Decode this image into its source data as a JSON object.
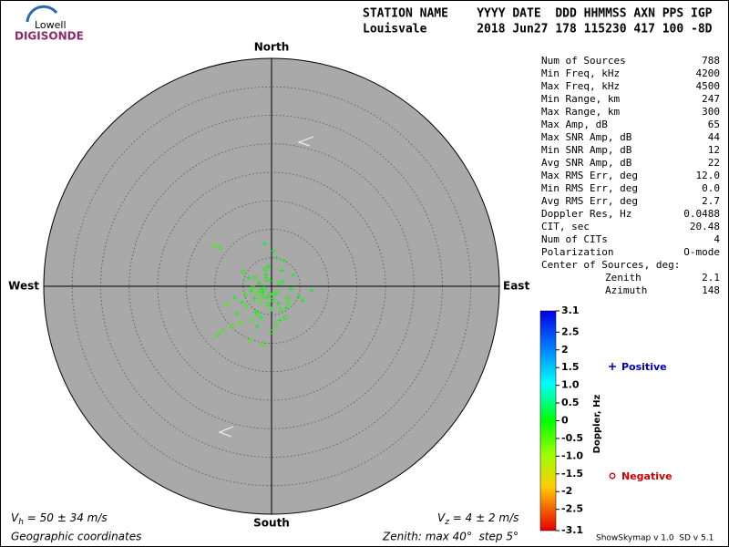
{
  "logo": {
    "top": "Lowell",
    "bottom": "DIGISONDE"
  },
  "header": {
    "line1": "STATION NAME    YYYY DATE  DDD HHMMSS AXN PPS IGP",
    "line2": "Louisvale       2018 Jun27 178 115230 417 100 -8D"
  },
  "stats": {
    "rows": [
      [
        "Num of Sources",
        "788"
      ],
      [
        "Min Freq, kHz",
        "4200"
      ],
      [
        "Max Freq, kHz",
        "4500"
      ],
      [
        "Min Range, km",
        "247"
      ],
      [
        "Max Range, km",
        "300"
      ],
      [
        "Max Amp, dB",
        "65"
      ],
      [
        "Max SNR Amp, dB",
        "44"
      ],
      [
        "Min SNR Amp, dB",
        "12"
      ],
      [
        "Avg SNR Amp, dB",
        "22"
      ],
      [
        "Max RMS Err, deg",
        "12.0"
      ],
      [
        "Min RMS Err, deg",
        "0.0"
      ],
      [
        "Avg RMS Err, deg",
        "2.7"
      ],
      [
        "Doppler Res, Hz",
        "0.0488"
      ],
      [
        "CIT, sec",
        "20.48"
      ],
      [
        "Num of CITs",
        "4"
      ],
      [
        "Polarization",
        "O-mode"
      ]
    ],
    "center_title": "Center of Sources, deg:",
    "center_rows": [
      [
        "Zenith",
        "2.1"
      ],
      [
        "Azimuth",
        "148"
      ]
    ]
  },
  "footer": {
    "vh": [
      "V",
      "h",
      " = 50 ± 34 m/s"
    ],
    "vz": [
      "V",
      "z",
      " = 4 ± 2 m/s"
    ],
    "coords": "Geographic coordinates",
    "zenith": "Zenith: max 40°  step 5°",
    "version": "ShowSkymap v 1.0  SD v 5.1"
  },
  "chart_data": {
    "type": "skymap",
    "directions": {
      "north": "North",
      "south": "South",
      "east": "East",
      "west": "West"
    },
    "rlim": [
      0,
      40
    ],
    "rticks": [
      5,
      10,
      15,
      20,
      25,
      30,
      35,
      40
    ],
    "colorbar": {
      "label": "Doppler, Hz",
      "clim": [
        -3.1,
        3.1
      ],
      "ticks": [
        3.1,
        2.5,
        2,
        1.5,
        {
          "value": 1,
          "label": "1.0"
        },
        0.5,
        0,
        -0.5,
        {
          "value": -1,
          "label": "-1.0"
        },
        -1.5,
        -2,
        -2.5,
        -3.1
      ]
    },
    "series": [
      {
        "name": "Positive",
        "marker": "plus",
        "color": "#0000c0",
        "x": [
          -1.5,
          -0.8,
          -2.2,
          0.5,
          1.2,
          -3.0,
          2.0,
          -1.0,
          0.0,
          -2.8,
          3.5,
          4.8,
          -4.0,
          1.8,
          -0.5,
          2.6,
          -1.8,
          0.9,
          -3.6,
          5.5,
          7.0,
          -5.2,
          -6.5,
          0.3,
          -1.2,
          2.2,
          -2.5,
          3.8,
          -0.2,
          1.5
        ],
        "values": [
          -1.0,
          -2.0,
          0.5,
          -1.5,
          -3.0,
          -2.2,
          0.8,
          2.0,
          -4.0,
          -4.5,
          -0.5,
          -1.8,
          1.5,
          2.8,
          3.5,
          -3.8,
          -5.5,
          5.0,
          -0.8,
          -2.5,
          -0.8,
          -2.8,
          -2.0,
          6.2,
          7.5,
          4.5,
          -7.0,
          2.0,
          1.0,
          -6.0
        ],
        "doppler": [
          0.1,
          0.2,
          0.1,
          0.3,
          0.1,
          0.2,
          0.2,
          0.1,
          0.1,
          0.3,
          0.2,
          0.2,
          0.1,
          0.1,
          0.1,
          0.2,
          0.3,
          0.2,
          0.1,
          0.2,
          0.2,
          0.2,
          0.1,
          0.3,
          0.2,
          0.1,
          0.2,
          0.1,
          0.1,
          0.2
        ]
      },
      {
        "name": "Negative",
        "marker": "circle",
        "color": "#d00000",
        "x": [
          -1.7,
          -1.3,
          -2.6,
          -0.6,
          0.2,
          -3.3,
          1.0,
          -2.0,
          -4.5,
          -0.9,
          1.6,
          -2.4,
          -5.5,
          -7.0,
          -8.5,
          -9.5,
          -6.0,
          -3.8,
          -1.5,
          0.8,
          2.4,
          3.0,
          -4.6,
          -10.0,
          -9.0,
          -0.3,
          -2.9,
          -1.1,
          1.3,
          -3.5,
          -7.8,
          -5.0,
          0.0,
          -1.9,
          2.8
        ],
        "values": [
          -1.8,
          -0.4,
          -1.2,
          -3.2,
          -2.4,
          -0.2,
          -1.0,
          -2.8,
          -3.5,
          1.2,
          -4.2,
          -5.0,
          -6.5,
          -7.0,
          -7.8,
          -8.5,
          -4.8,
          -9.5,
          -10.2,
          -6.8,
          -5.5,
          -3.0,
          -1.5,
          7.2,
          6.8,
          -1.4,
          1.5,
          3.0,
          0.5,
          -6.0,
          -3.2,
          2.5,
          -8.0,
          -0.8,
          -2.0
        ],
        "doppler": [
          -0.2,
          -0.1,
          -0.3,
          -0.2,
          -0.1,
          -0.3,
          -0.2,
          -0.4,
          -0.3,
          -0.1,
          -0.2,
          -0.3,
          -0.4,
          -0.3,
          -0.4,
          -0.3,
          -0.2,
          -0.4,
          -0.3,
          -0.2,
          -0.1,
          -0.2,
          -0.3,
          -0.4,
          -0.3,
          -0.1,
          -0.2,
          -0.1,
          -0.2,
          -0.3,
          -0.4,
          -0.2,
          -0.3,
          -0.1,
          -0.2
        ]
      }
    ]
  }
}
